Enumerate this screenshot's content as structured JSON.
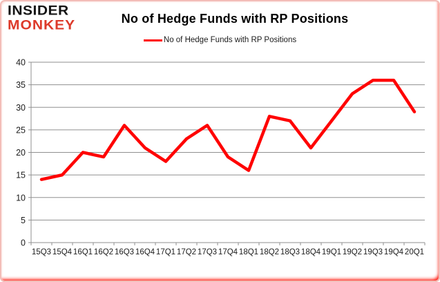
{
  "branding": {
    "line1": "INSIDER",
    "line2": "MONKEY"
  },
  "title": "No of Hedge Funds with RP Positions",
  "legend": {
    "label": "No of Hedge Funds with RP Positions"
  },
  "colors": {
    "series_red": "#ff0000",
    "logo_red": "#dd3a2a"
  },
  "chart_data": {
    "type": "line",
    "title": "No of Hedge Funds with RP Positions",
    "categories": [
      "15Q3",
      "15Q4",
      "16Q1",
      "16Q2",
      "16Q3",
      "16Q4",
      "17Q1",
      "17Q2",
      "17Q3",
      "17Q4",
      "18Q1",
      "18Q2",
      "18Q3",
      "18Q4",
      "19Q1",
      "19Q2",
      "19Q3",
      "19Q4",
      "20Q1"
    ],
    "series": [
      {
        "name": "No of Hedge Funds with RP Positions",
        "color": "#ff0000",
        "values": [
          14,
          15,
          20,
          19,
          26,
          21,
          18,
          23,
          26,
          19,
          16,
          28,
          27,
          21,
          27,
          33,
          36,
          36,
          29
        ]
      }
    ],
    "xlabel": "",
    "ylabel": "",
    "ylim": [
      0,
      40
    ],
    "ytick_step": 5,
    "grid": true,
    "legend_position": "top"
  }
}
